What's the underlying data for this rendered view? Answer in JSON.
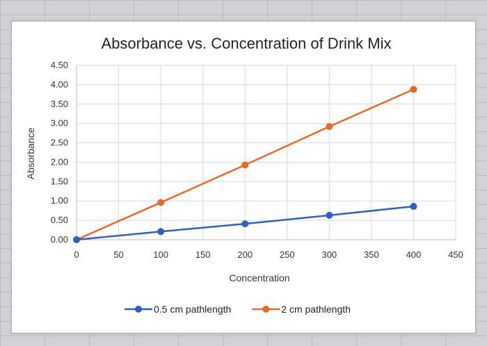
{
  "chart_data": {
    "type": "line",
    "title": "Absorbance vs. Concentration of Drink Mix",
    "xlabel": "Concentration",
    "ylabel": "Absorbance",
    "xlim": [
      0,
      450
    ],
    "ylim": [
      0,
      4.5
    ],
    "x_ticks": [
      "0",
      "50",
      "100",
      "150",
      "200",
      "250",
      "300",
      "350",
      "400",
      "450"
    ],
    "y_ticks": [
      "0.00",
      "0.50",
      "1.00",
      "1.50",
      "2.00",
      "2.50",
      "3.00",
      "3.50",
      "4.00",
      "4.50"
    ],
    "grid": true,
    "legend_position": "bottom",
    "series": [
      {
        "name": "0.5 cm pathlength",
        "color": "#2f5fbf",
        "x": [
          0,
          100,
          200,
          300,
          400
        ],
        "y": [
          0.0,
          0.21,
          0.41,
          0.63,
          0.86
        ]
      },
      {
        "name": "2 cm pathlength",
        "color": "#e8682a",
        "x": [
          0,
          100,
          200,
          300,
          400
        ],
        "y": [
          0.0,
          0.96,
          1.93,
          2.92,
          3.88
        ]
      }
    ]
  }
}
